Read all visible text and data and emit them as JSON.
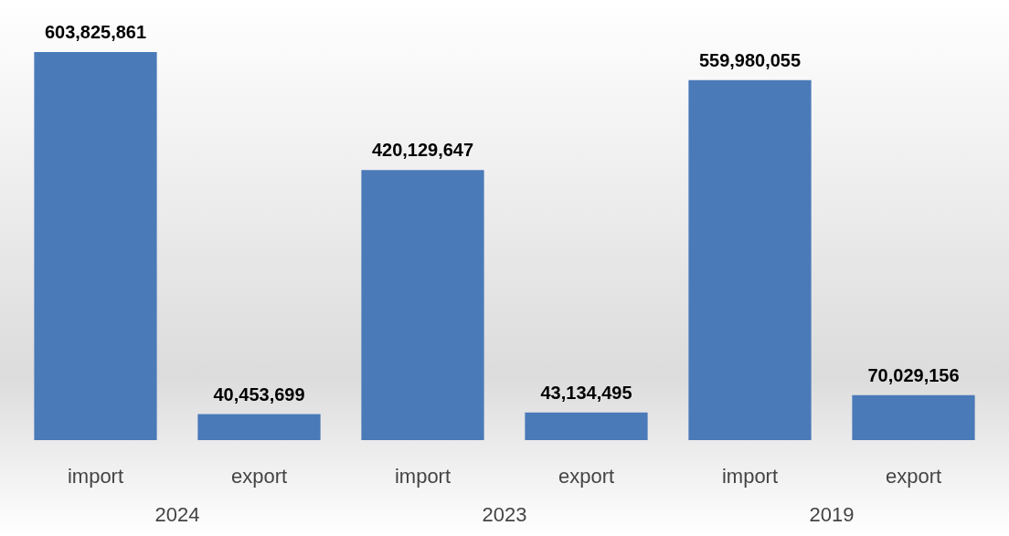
{
  "chart_data": {
    "type": "bar",
    "categories": [
      "import",
      "export",
      "import",
      "export",
      "import",
      "export"
    ],
    "values": [
      603825861,
      40453699,
      420129647,
      43134495,
      559980055,
      70029156
    ],
    "color": "#4a7ab8",
    "value_labels": [
      "603,825,861",
      "40,453,699",
      "420,129,647",
      "43,134,495",
      "559,980,055",
      "70,029,156"
    ],
    "annotations": [
      "2024",
      "2023",
      "2019"
    ]
  }
}
